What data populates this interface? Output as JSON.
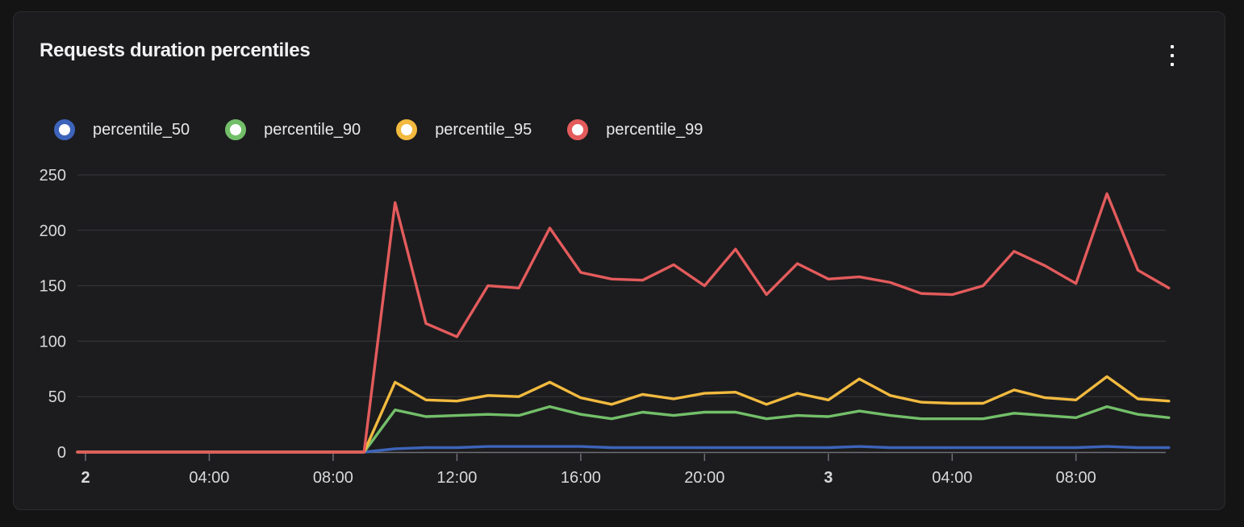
{
  "panel": {
    "title": "Requests duration percentiles",
    "menu_icon": "kebab-vertical-icon"
  },
  "colors": {
    "background": "#141414",
    "panel_bg": "#1C1C1E",
    "panel_border": "#2C2C30",
    "grid": "#39393D",
    "axis": "#6E6E76",
    "axis_text": "#D8D9DA",
    "title_text": "#F2F2F4",
    "legend_text": "#E9E9EB",
    "p50": "#3D64BA",
    "p90": "#73BF69",
    "p95": "#F2BA3F",
    "p99": "#E45B5C"
  },
  "chart_data": {
    "type": "line",
    "title": "Requests duration percentiles",
    "xlabel": "",
    "ylabel": "",
    "x_unit": "hours from day 2 00:00",
    "grid": "horizontal-only",
    "legend_position": "top",
    "ylim": [
      0,
      250
    ],
    "y_ticks": [
      0,
      50,
      100,
      150,
      200,
      250
    ],
    "x_ticks": [
      {
        "h": 0,
        "label": "2",
        "bold": true
      },
      {
        "h": 4,
        "label": "04:00",
        "bold": false
      },
      {
        "h": 8,
        "label": "08:00",
        "bold": false
      },
      {
        "h": 12,
        "label": "12:00",
        "bold": false
      },
      {
        "h": 16,
        "label": "16:00",
        "bold": false
      },
      {
        "h": 20,
        "label": "20:00",
        "bold": false
      },
      {
        "h": 24,
        "label": "3",
        "bold": true
      },
      {
        "h": 28,
        "label": "04:00",
        "bold": false
      },
      {
        "h": 32,
        "label": "08:00",
        "bold": false
      }
    ],
    "x_hours": [
      0,
      1,
      2,
      3,
      4,
      5,
      6,
      7,
      8,
      9,
      10,
      11,
      12,
      13,
      14,
      15,
      16,
      17,
      18,
      19,
      20,
      21,
      22,
      23,
      24,
      25,
      26,
      27,
      28,
      29,
      30,
      31,
      32,
      33,
      34,
      35
    ],
    "series": [
      {
        "name": "percentile_50",
        "color": "#3D64BA",
        "values": [
          0,
          0,
          0,
          0,
          0,
          0,
          0,
          0,
          0,
          0,
          3,
          4,
          4,
          5,
          5,
          5,
          5,
          4,
          4,
          4,
          4,
          4,
          4,
          4,
          4,
          5,
          4,
          4,
          4,
          4,
          4,
          4,
          4,
          5,
          4,
          4
        ]
      },
      {
        "name": "percentile_90",
        "color": "#73BF69",
        "values": [
          0,
          0,
          0,
          0,
          0,
          0,
          0,
          0,
          0,
          0,
          38,
          32,
          33,
          34,
          33,
          41,
          34,
          30,
          36,
          33,
          36,
          36,
          30,
          33,
          32,
          37,
          33,
          30,
          30,
          30,
          35,
          33,
          31,
          41,
          34,
          31
        ]
      },
      {
        "name": "percentile_95",
        "color": "#F2BA3F",
        "values": [
          0,
          0,
          0,
          0,
          0,
          0,
          0,
          0,
          0,
          0,
          63,
          47,
          46,
          51,
          50,
          63,
          49,
          43,
          52,
          48,
          53,
          54,
          43,
          53,
          47,
          66,
          51,
          45,
          44,
          44,
          56,
          49,
          47,
          68,
          48,
          46
        ]
      },
      {
        "name": "percentile_99",
        "color": "#E45B5C",
        "values": [
          0,
          0,
          0,
          0,
          0,
          0,
          0,
          0,
          0,
          0,
          225,
          116,
          104,
          150,
          148,
          202,
          162,
          156,
          155,
          169,
          150,
          183,
          142,
          170,
          156,
          158,
          153,
          143,
          142,
          150,
          181,
          168,
          152,
          233,
          164,
          148
        ]
      }
    ]
  }
}
